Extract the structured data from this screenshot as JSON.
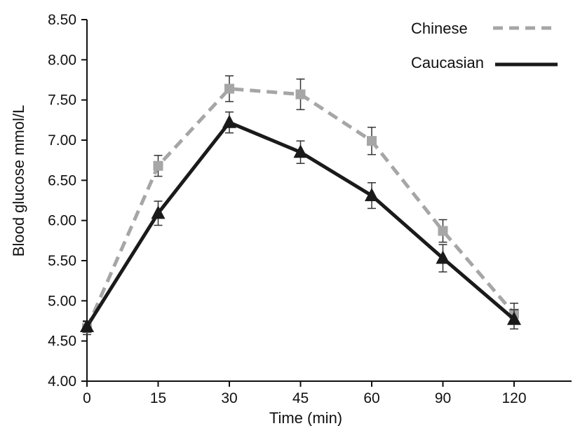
{
  "chart_data": {
    "type": "line",
    "categories": [
      "0",
      "15",
      "30",
      "45",
      "60",
      "90",
      "120"
    ],
    "xlabel": "Time (min)",
    "ylabel": "Blood glucose mmol/L",
    "ylim": [
      4.0,
      8.5
    ],
    "yticks": [
      "4.00",
      "4.50",
      "5.00",
      "5.50",
      "6.00",
      "6.50",
      "7.00",
      "7.50",
      "8.00",
      "8.50"
    ],
    "grid": false,
    "legend_position": "top-right",
    "series": [
      {
        "name": "Chinese",
        "style": "dashed",
        "marker": "square",
        "color": "#a6a6a6",
        "values": [
          4.66,
          6.68,
          7.64,
          7.57,
          6.99,
          5.87,
          4.84
        ],
        "error": [
          0.08,
          0.13,
          0.16,
          0.19,
          0.17,
          0.14,
          0.13
        ]
      },
      {
        "name": "Caucasian",
        "style": "solid",
        "marker": "triangle",
        "color": "#1a1a1a",
        "values": [
          4.68,
          6.09,
          7.22,
          6.85,
          6.31,
          5.53,
          4.77
        ],
        "error": [
          0.07,
          0.15,
          0.13,
          0.14,
          0.16,
          0.17,
          0.12
        ]
      }
    ]
  }
}
